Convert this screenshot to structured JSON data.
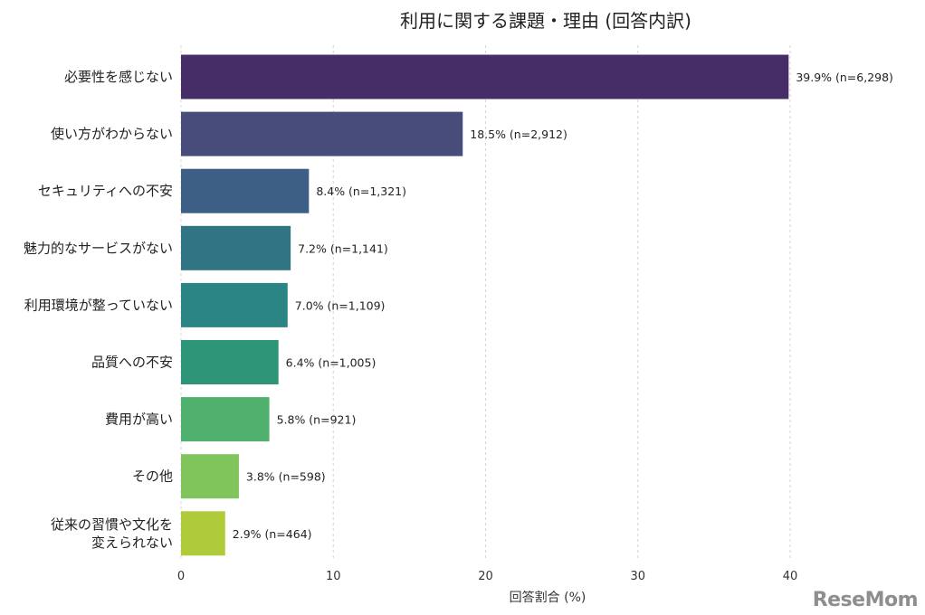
{
  "chart_data": {
    "type": "bar",
    "orientation": "horizontal",
    "title": "利用に関する課題・理由 (回答内訳)",
    "xlabel": "回答割合 (%)",
    "ylabel": "",
    "xlim": [
      0,
      41
    ],
    "xticks": [
      0,
      10,
      20,
      30,
      40
    ],
    "grid": true,
    "categories": [
      "必要性を感じない",
      "使い方がわからない",
      "セキュリティへの不安",
      "魅力的なサービスがない",
      "利用環境が整っていない",
      "品質への不安",
      "費用が高い",
      "その他",
      "従来の習慣や文化を\n変えられない"
    ],
    "values": [
      39.9,
      18.5,
      8.4,
      7.2,
      7.0,
      6.4,
      5.8,
      3.8,
      2.9
    ],
    "counts": [
      6298,
      2912,
      1321,
      1141,
      1109,
      1005,
      921,
      598,
      464
    ],
    "data_labels": [
      "39.9% (n=6,298)",
      "18.5% (n=2,912)",
      "8.4% (n=1,321)",
      "7.2% (n=1,141)",
      "7.0% (n=1,109)",
      "6.4% (n=1,005)",
      "5.8% (n=921)",
      "3.8% (n=598)",
      "2.9% (n=464)"
    ],
    "colors": [
      "#472d68",
      "#474c7b",
      "#3d5e85",
      "#317584",
      "#2b8584",
      "#2e9478",
      "#50b16e",
      "#80c45c",
      "#b0cb3a"
    ]
  },
  "watermark": "ReseMom"
}
